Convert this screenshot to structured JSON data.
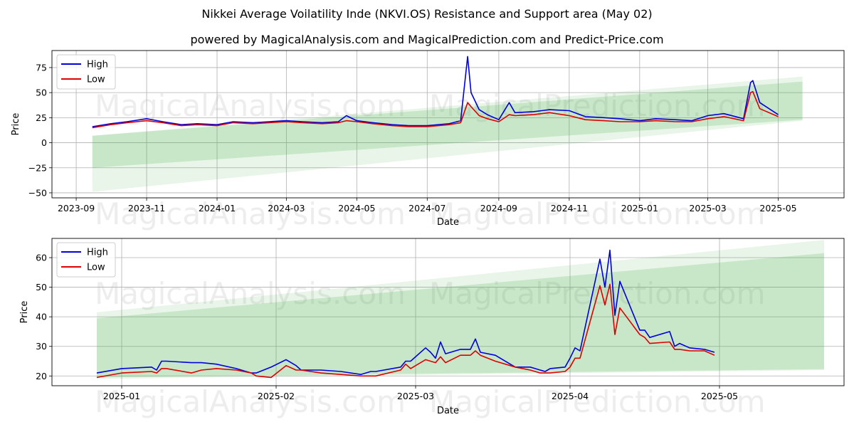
{
  "title": "Nikkei Average Voilatility Inde (NKVI.OS) Resistance and Support area (May 02)",
  "subtitle": "powered by MagicalAnalysis.com and MagicalPrediction.com and Predict-Price.com",
  "watermarks": [
    "MagicalAnalysis.com",
    "MagicalPrediction.com"
  ],
  "colors": {
    "high": "#0000dd",
    "low": "#dd0000",
    "band": "#4caf50"
  },
  "chart_data": [
    {
      "type": "line",
      "xlabel": "Date",
      "ylabel": "Price",
      "ylim": [
        -55,
        92
      ],
      "xlim": [
        "2023-08-11",
        "2025-06-27"
      ],
      "xticks": [
        "2023-09",
        "2023-11",
        "2024-01",
        "2024-03",
        "2024-05",
        "2024-07",
        "2024-09",
        "2024-11",
        "2025-01",
        "2025-03",
        "2025-05"
      ],
      "xtick_dates": [
        "2023-09-01",
        "2023-11-01",
        "2024-01-01",
        "2024-03-01",
        "2024-05-01",
        "2024-07-01",
        "2024-09-01",
        "2024-11-01",
        "2025-01-01",
        "2025-03-01",
        "2025-05-01"
      ],
      "yticks": [
        -50,
        -25,
        0,
        25,
        50,
        75
      ],
      "grid": true,
      "legend": "top-left",
      "series": [
        {
          "name": "High",
          "x": [
            "2023-09-15",
            "2023-10-01",
            "2023-10-15",
            "2023-11-01",
            "2023-11-15",
            "2023-12-01",
            "2023-12-15",
            "2024-01-01",
            "2024-01-15",
            "2024-02-01",
            "2024-02-15",
            "2024-03-01",
            "2024-03-15",
            "2024-04-01",
            "2024-04-15",
            "2024-04-22",
            "2024-05-01",
            "2024-05-15",
            "2024-06-01",
            "2024-06-15",
            "2024-07-01",
            "2024-07-20",
            "2024-07-30",
            "2024-08-05",
            "2024-08-08",
            "2024-08-15",
            "2024-08-22",
            "2024-09-01",
            "2024-09-10",
            "2024-09-15",
            "2024-10-01",
            "2024-10-15",
            "2024-11-01",
            "2024-11-15",
            "2024-12-01",
            "2024-12-15",
            "2025-01-01",
            "2025-01-15",
            "2025-02-01",
            "2025-02-15",
            "2025-03-01",
            "2025-03-15",
            "2025-04-01",
            "2025-04-07",
            "2025-04-09",
            "2025-04-15",
            "2025-05-01"
          ],
          "values": [
            16,
            19,
            21,
            24,
            21,
            18,
            19,
            18,
            21,
            20,
            21,
            22,
            21,
            20,
            21,
            27,
            22,
            20,
            18,
            17,
            17,
            19,
            22,
            86,
            50,
            33,
            28,
            23,
            40,
            30,
            31,
            33,
            32,
            26,
            25,
            24,
            22,
            24,
            23,
            22,
            27,
            29,
            24,
            60,
            62,
            40,
            28
          ]
        },
        {
          "name": "Low",
          "x": [
            "2023-09-15",
            "2023-10-01",
            "2023-10-15",
            "2023-11-01",
            "2023-11-15",
            "2023-12-01",
            "2023-12-15",
            "2024-01-01",
            "2024-01-15",
            "2024-02-01",
            "2024-02-15",
            "2024-03-01",
            "2024-03-15",
            "2024-04-01",
            "2024-04-15",
            "2024-04-22",
            "2024-05-01",
            "2024-05-15",
            "2024-06-01",
            "2024-06-15",
            "2024-07-01",
            "2024-07-20",
            "2024-07-30",
            "2024-08-05",
            "2024-08-08",
            "2024-08-15",
            "2024-08-22",
            "2024-09-01",
            "2024-09-10",
            "2024-09-15",
            "2024-10-01",
            "2024-10-15",
            "2024-11-01",
            "2024-11-15",
            "2024-12-01",
            "2024-12-15",
            "2025-01-01",
            "2025-01-15",
            "2025-02-01",
            "2025-02-15",
            "2025-03-01",
            "2025-03-15",
            "2025-04-01",
            "2025-04-07",
            "2025-04-09",
            "2025-04-15",
            "2025-05-01"
          ],
          "values": [
            15,
            18,
            20,
            22,
            20,
            17,
            18,
            17,
            20,
            19,
            20,
            21,
            20,
            19,
            20,
            22,
            21,
            19,
            17,
            16,
            16,
            18,
            20,
            40,
            36,
            27,
            24,
            21,
            28,
            27,
            28,
            30,
            27,
            23,
            22,
            21,
            21,
            22,
            21,
            21,
            24,
            26,
            22,
            50,
            51,
            34,
            26
          ]
        }
      ],
      "bands": [
        {
          "x": [
            "2023-09-15",
            "2025-05-22"
          ],
          "upper": [
            7,
            66
          ],
          "lower": [
            -49,
            22
          ]
        },
        {
          "x": [
            "2023-09-15",
            "2025-05-22"
          ],
          "upper": [
            7,
            61
          ],
          "lower": [
            -25,
            23
          ]
        }
      ]
    },
    {
      "type": "line",
      "xlabel": "Date",
      "ylabel": "Price",
      "ylim": [
        16.7,
        66.5
      ],
      "xlim": [
        "2024-12-18",
        "2025-05-26"
      ],
      "xticks": [
        "2025-01",
        "2025-02",
        "2025-03",
        "2025-04",
        "2025-05"
      ],
      "xtick_dates": [
        "2025-01-01",
        "2025-02-01",
        "2025-03-01",
        "2025-04-01",
        "2025-05-01"
      ],
      "yticks": [
        20,
        30,
        40,
        50,
        60
      ],
      "grid": true,
      "legend": "top-left",
      "series": [
        {
          "name": "High",
          "x": [
            "2024-12-27",
            "2025-01-01",
            "2025-01-07",
            "2025-01-08",
            "2025-01-09",
            "2025-01-10",
            "2025-01-15",
            "2025-01-17",
            "2025-01-20",
            "2025-01-24",
            "2025-01-27",
            "2025-01-28",
            "2025-01-31",
            "2025-02-03",
            "2025-02-05",
            "2025-02-06",
            "2025-02-10",
            "2025-02-14",
            "2025-02-18",
            "2025-02-20",
            "2025-02-21",
            "2025-02-26",
            "2025-02-27",
            "2025-02-28",
            "2025-03-03",
            "2025-03-04",
            "2025-03-05",
            "2025-03-06",
            "2025-03-07",
            "2025-03-10",
            "2025-03-11",
            "2025-03-12",
            "2025-03-13",
            "2025-03-14",
            "2025-03-17",
            "2025-03-21",
            "2025-03-24",
            "2025-03-25",
            "2025-03-26",
            "2025-03-27",
            "2025-03-28",
            "2025-03-31",
            "2025-04-01",
            "2025-04-02",
            "2025-04-03",
            "2025-04-07",
            "2025-04-08",
            "2025-04-09",
            "2025-04-10",
            "2025-04-11",
            "2025-04-15",
            "2025-04-16",
            "2025-04-17",
            "2025-04-21",
            "2025-04-22",
            "2025-04-23",
            "2025-04-25",
            "2025-04-28",
            "2025-04-30"
          ],
          "values": [
            21,
            22.5,
            23,
            22,
            25,
            25,
            24.5,
            24.5,
            24,
            22.5,
            21,
            21,
            23,
            25.5,
            23.5,
            22,
            22,
            21.5,
            20.5,
            21.5,
            21.5,
            23,
            25,
            25,
            29.5,
            28,
            26,
            31.5,
            27.5,
            29,
            29,
            29,
            32.5,
            28,
            27,
            23,
            23,
            22.5,
            22,
            21.5,
            22.5,
            23,
            26,
            29.5,
            28.5,
            59.5,
            50,
            62.5,
            40.5,
            52,
            35.5,
            35.5,
            33,
            35,
            30,
            31,
            29.5,
            29,
            28
          ]
        },
        {
          "name": "Low",
          "x": [
            "2024-12-27",
            "2025-01-01",
            "2025-01-07",
            "2025-01-08",
            "2025-01-09",
            "2025-01-10",
            "2025-01-15",
            "2025-01-17",
            "2025-01-20",
            "2025-01-24",
            "2025-01-27",
            "2025-01-28",
            "2025-01-31",
            "2025-02-03",
            "2025-02-05",
            "2025-02-06",
            "2025-02-10",
            "2025-02-14",
            "2025-02-18",
            "2025-02-20",
            "2025-02-21",
            "2025-02-26",
            "2025-02-27",
            "2025-02-28",
            "2025-03-03",
            "2025-03-04",
            "2025-03-05",
            "2025-03-06",
            "2025-03-07",
            "2025-03-10",
            "2025-03-11",
            "2025-03-12",
            "2025-03-13",
            "2025-03-14",
            "2025-03-17",
            "2025-03-21",
            "2025-03-24",
            "2025-03-25",
            "2025-03-26",
            "2025-03-27",
            "2025-03-28",
            "2025-03-31",
            "2025-04-01",
            "2025-04-02",
            "2025-04-03",
            "2025-04-07",
            "2025-04-08",
            "2025-04-09",
            "2025-04-10",
            "2025-04-11",
            "2025-04-15",
            "2025-04-16",
            "2025-04-17",
            "2025-04-21",
            "2025-04-22",
            "2025-04-23",
            "2025-04-25",
            "2025-04-28",
            "2025-04-30"
          ],
          "values": [
            19.5,
            21,
            21.5,
            21,
            22.5,
            22.5,
            21,
            22,
            22.5,
            22,
            21,
            20,
            19.5,
            23.5,
            22,
            22,
            21,
            20.5,
            20,
            20,
            20,
            22,
            24,
            22.5,
            25.5,
            25,
            24.5,
            26.5,
            24.5,
            27,
            27,
            27,
            28.5,
            27,
            25,
            23,
            22,
            21.5,
            21,
            21,
            21,
            21.5,
            23,
            26,
            26,
            50.5,
            44,
            51,
            34,
            43,
            34,
            33,
            31,
            31.5,
            29,
            29,
            28.5,
            28.5,
            27
          ]
        }
      ],
      "bands": [
        {
          "x": [
            "2024-12-27",
            "2025-05-22"
          ],
          "upper": [
            41.5,
            66
          ],
          "lower": [
            19,
            22
          ]
        },
        {
          "x": [
            "2024-12-27",
            "2025-05-22"
          ],
          "upper": [
            39.5,
            61.5
          ],
          "lower": [
            19.5,
            22.3
          ]
        }
      ]
    }
  ]
}
